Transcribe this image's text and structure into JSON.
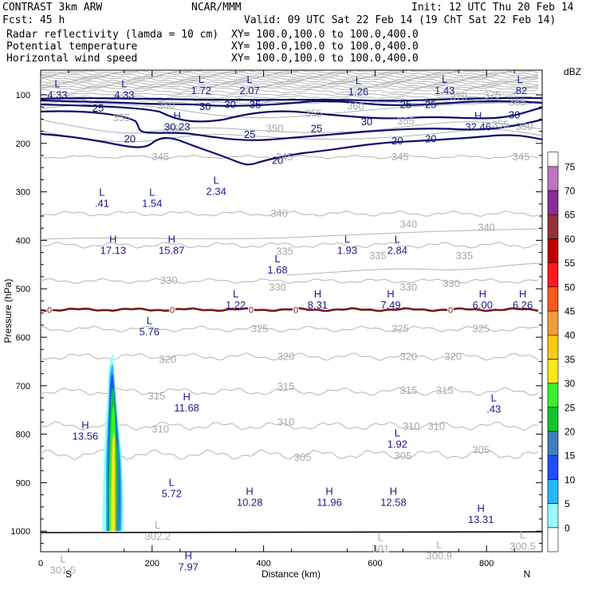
{
  "header": {
    "line1_left": "CONTRAST  3km ARW",
    "line1_mid": "NCAR/MMM",
    "line1_right": "Init: 12 UTC Thu 20 Feb 14",
    "line2_left": "Fcst:    45 h",
    "line2_right": "Valid: 09 UTC Sat 22 Feb 14 (19 ChT Sat 22 Feb 14)",
    "fields": [
      {
        "name": "Radar reflectivity (lamda = 10 cm)",
        "xy": "XY= 100.0,100.0 to 100.0,400.0",
        "color": "#000000"
      },
      {
        "name": "Potential temperature",
        "xy": "XY= 100.0,100.0 to 100.0,400.0",
        "color": "#b8b8b8"
      },
      {
        "name": "Horizontal wind speed",
        "xy": "XY= 100.0,100.0 to 100.0,400.0",
        "color": "#10106e"
      }
    ]
  },
  "chart_data": {
    "type": "cross-section",
    "xlabel": "Distance (km)",
    "ylabel": "Pressure (hPa)",
    "x_ticks": [
      0,
      200,
      400,
      600,
      800
    ],
    "xlim": [
      0,
      900
    ],
    "y_ticks": [
      100,
      200,
      300,
      400,
      500,
      600,
      700,
      800,
      900,
      1000
    ],
    "ylim": [
      1050,
      50
    ],
    "x_end_labels": {
      "left": "S",
      "right": "N"
    },
    "colorbar": {
      "unit": "dBZ",
      "levels": [
        0,
        5,
        10,
        15,
        20,
        25,
        30,
        35,
        40,
        45,
        50,
        55,
        60,
        65,
        70,
        75
      ],
      "colors": [
        "#ffffff",
        "#98fcfc",
        "#22bafc",
        "#1c4ffc",
        "#3e7fbf",
        "#0fc42d",
        "#3cf02a",
        "#f8e81c",
        "#f8c81a",
        "#f89c3a",
        "#fc5a1c",
        "#fc1c1c",
        "#c00000",
        "#983038",
        "#8c2c98",
        "#c074c0"
      ]
    },
    "wind_speed_labels": [
      {
        "x": 103,
        "p": 126,
        "text": "25"
      },
      {
        "x": 385,
        "p": 119,
        "text": "35"
      },
      {
        "x": 295,
        "p": 123,
        "text": "30"
      },
      {
        "x": 340,
        "p": 119,
        "text": "30"
      },
      {
        "x": 655,
        "p": 119,
        "text": "25"
      },
      {
        "x": 700,
        "p": 119,
        "text": "25"
      },
      {
        "x": 585,
        "p": 154,
        "text": "30"
      },
      {
        "x": 850,
        "p": 140,
        "text": "30"
      },
      {
        "x": 160,
        "p": 190,
        "text": "20"
      },
      {
        "x": 375,
        "p": 181,
        "text": "25"
      },
      {
        "x": 495,
        "p": 168,
        "text": "25"
      },
      {
        "x": 640,
        "p": 194,
        "text": "20"
      },
      {
        "x": 700,
        "p": 190,
        "text": "20"
      },
      {
        "x": 425,
        "p": 234,
        "text": "20"
      }
    ],
    "theta_labels": [
      {
        "x": 215,
        "p": 228,
        "text": "345"
      },
      {
        "x": 437,
        "p": 228,
        "text": "345"
      },
      {
        "x": 645,
        "p": 228,
        "text": "345"
      },
      {
        "x": 862,
        "p": 228,
        "text": "345"
      },
      {
        "x": 428,
        "p": 345,
        "text": "340"
      },
      {
        "x": 660,
        "p": 367,
        "text": "340"
      },
      {
        "x": 800,
        "p": 374,
        "text": "340"
      },
      {
        "x": 438,
        "p": 423,
        "text": "335"
      },
      {
        "x": 760,
        "p": 432,
        "text": "335"
      },
      {
        "x": 605,
        "p": 432,
        "text": "335"
      },
      {
        "x": 230,
        "p": 483,
        "text": "330"
      },
      {
        "x": 425,
        "p": 497,
        "text": "330"
      },
      {
        "x": 660,
        "p": 497,
        "text": "330"
      },
      {
        "x": 737,
        "p": 490,
        "text": "330"
      },
      {
        "x": 393,
        "p": 583,
        "text": "325"
      },
      {
        "x": 645,
        "p": 583,
        "text": "325"
      },
      {
        "x": 790,
        "p": 583,
        "text": "325"
      },
      {
        "x": 228,
        "p": 646,
        "text": "320"
      },
      {
        "x": 440,
        "p": 640,
        "text": "320"
      },
      {
        "x": 660,
        "p": 640,
        "text": "320"
      },
      {
        "x": 740,
        "p": 640,
        "text": "320"
      },
      {
        "x": 208,
        "p": 722,
        "text": "315"
      },
      {
        "x": 440,
        "p": 702,
        "text": "315"
      },
      {
        "x": 660,
        "p": 710,
        "text": "315"
      },
      {
        "x": 725,
        "p": 710,
        "text": "315"
      },
      {
        "x": 215,
        "p": 790,
        "text": "310"
      },
      {
        "x": 440,
        "p": 775,
        "text": "310"
      },
      {
        "x": 665,
        "p": 784,
        "text": "310"
      },
      {
        "x": 710,
        "p": 784,
        "text": "310"
      },
      {
        "x": 470,
        "p": 848,
        "text": "305"
      },
      {
        "x": 650,
        "p": 845,
        "text": "305"
      },
      {
        "x": 790,
        "p": 833,
        "text": "305"
      }
    ],
    "upper_theta_labels": [
      {
        "x": 225,
        "p": 122,
        "text": "360"
      },
      {
        "x": 145,
        "p": 148,
        "text": "355"
      },
      {
        "x": 235,
        "p": 171,
        "text": "350"
      },
      {
        "x": 420,
        "p": 170,
        "text": "350"
      },
      {
        "x": 490,
        "p": 139,
        "text": "355"
      },
      {
        "x": 655,
        "p": 154,
        "text": "355"
      },
      {
        "x": 750,
        "p": 105,
        "text": "370"
      },
      {
        "x": 810,
        "p": 101,
        "text": "375"
      },
      {
        "x": 855,
        "p": 116,
        "text": "365"
      },
      {
        "x": 825,
        "p": 162,
        "text": "355"
      },
      {
        "x": 868,
        "p": 166,
        "text": "350"
      },
      {
        "x": 565,
        "p": 124,
        "text": "360"
      }
    ],
    "hl_markers": [
      {
        "x": 30,
        "p": 84,
        "letter": "L",
        "value": "4.33",
        "color": "blue"
      },
      {
        "x": 150,
        "p": 84,
        "letter": "L",
        "value": "4.33",
        "color": "blue"
      },
      {
        "x": 288,
        "p": 75,
        "letter": "L",
        "value": "1.72",
        "color": "blue"
      },
      {
        "x": 375,
        "p": 75,
        "letter": "L",
        "value": "2.07",
        "color": "blue"
      },
      {
        "x": 570,
        "p": 78,
        "letter": "L",
        "value": "1.26",
        "color": "blue"
      },
      {
        "x": 725,
        "p": 75,
        "letter": "L",
        "value": "1.43",
        "color": "blue"
      },
      {
        "x": 860,
        "p": 75,
        "letter": "L",
        "value": ".82",
        "color": "blue"
      },
      {
        "x": 245,
        "p": 150,
        "letter": "H",
        "value": "30.23",
        "color": "blue"
      },
      {
        "x": 785,
        "p": 150,
        "letter": "H",
        "value": "32.46",
        "color": "blue"
      },
      {
        "x": 315,
        "p": 283,
        "letter": "L",
        "value": "2.34",
        "color": "blue"
      },
      {
        "x": 110,
        "p": 308,
        "letter": "L",
        "value": ".41",
        "color": "blue"
      },
      {
        "x": 200,
        "p": 308,
        "letter": "L",
        "value": "1.54",
        "color": "blue"
      },
      {
        "x": 130,
        "p": 405,
        "letter": "H",
        "value": "17.13",
        "color": "blue"
      },
      {
        "x": 235,
        "p": 405,
        "letter": "H",
        "value": "15.87",
        "color": "blue"
      },
      {
        "x": 550,
        "p": 405,
        "letter": "L",
        "value": "1.93",
        "color": "blue"
      },
      {
        "x": 640,
        "p": 405,
        "letter": "L",
        "value": "2.84",
        "color": "blue"
      },
      {
        "x": 425,
        "p": 445,
        "letter": "L",
        "value": "1.68",
        "color": "blue"
      },
      {
        "x": 350,
        "p": 518,
        "letter": "L",
        "value": "1.22",
        "color": "blue"
      },
      {
        "x": 497,
        "p": 518,
        "letter": "H",
        "value": "8.31",
        "color": "blue"
      },
      {
        "x": 628,
        "p": 518,
        "letter": "H",
        "value": "7.49",
        "color": "blue"
      },
      {
        "x": 793,
        "p": 518,
        "letter": "H",
        "value": "6.00",
        "color": "blue"
      },
      {
        "x": 865,
        "p": 518,
        "letter": "H",
        "value": "6.26",
        "color": "blue"
      },
      {
        "x": 195,
        "p": 573,
        "letter": "L",
        "value": "5.76",
        "color": "blue"
      },
      {
        "x": 262,
        "p": 730,
        "letter": "H",
        "value": "11.68",
        "color": "blue"
      },
      {
        "x": 813,
        "p": 732,
        "letter": "L",
        "value": ".43",
        "color": "blue"
      },
      {
        "x": 80,
        "p": 788,
        "letter": "H",
        "value": "13.56",
        "color": "blue"
      },
      {
        "x": 640,
        "p": 805,
        "letter": "L",
        "value": "1.92",
        "color": "blue"
      },
      {
        "x": 235,
        "p": 907,
        "letter": "L",
        "value": "5.72",
        "color": "blue"
      },
      {
        "x": 375,
        "p": 925,
        "letter": "H",
        "value": "10.28",
        "color": "blue"
      },
      {
        "x": 518,
        "p": 925,
        "letter": "H",
        "value": "11.96",
        "color": "blue"
      },
      {
        "x": 633,
        "p": 925,
        "letter": "H",
        "value": "12.58",
        "color": "blue"
      },
      {
        "x": 790,
        "p": 960,
        "letter": "H",
        "value": "13.31",
        "color": "blue"
      },
      {
        "x": 265,
        "p": 1058,
        "letter": "H",
        "value": "7.97",
        "color": "blue"
      },
      {
        "x": 210,
        "p": 995,
        "letter": "L",
        "value": "302.2",
        "color": "grey"
      },
      {
        "x": 40,
        "p": 1065,
        "letter": "L",
        "value": "301.5",
        "color": "grey"
      },
      {
        "x": 610,
        "p": 1020,
        "letter": "L",
        "value": "301",
        "color": "grey"
      },
      {
        "x": 715,
        "p": 1035,
        "letter": "L",
        "value": "300.9",
        "color": "grey"
      },
      {
        "x": 865,
        "p": 1015,
        "letter": "L",
        "value": "300.5",
        "color": "grey"
      }
    ],
    "zero_isotherm_label": "0"
  }
}
